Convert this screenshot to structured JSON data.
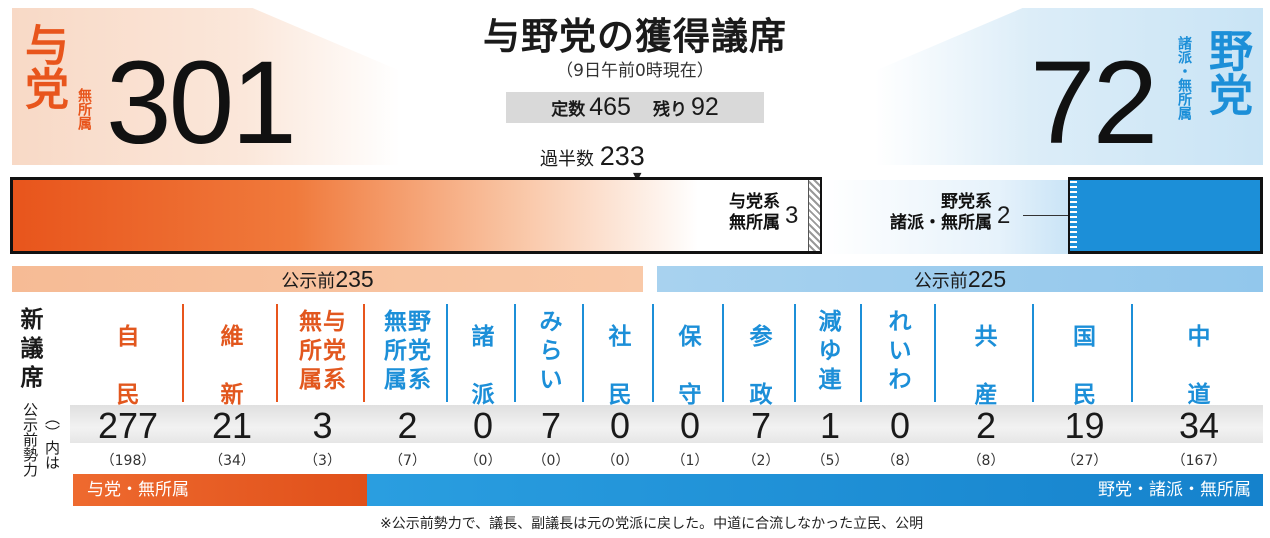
{
  "title": "与野党の獲得議席",
  "subtitle": "（9日午前0時現在）",
  "teisu": {
    "label": "定数",
    "value": "465",
    "remaining_label": "残り",
    "remaining_value": "92"
  },
  "majority": {
    "label": "過半数",
    "value": "233"
  },
  "ruling": {
    "party": "与党",
    "sub": "無所属",
    "total": "301",
    "color": "#e8551c",
    "ind_label_1": "与党系",
    "ind_label_2": "無所属",
    "ind_value": "3",
    "kouji_label": "公示前",
    "kouji_value": "235",
    "group_label": "与党・無所属"
  },
  "opposition": {
    "party": "野党",
    "sub": "諸派・無所属",
    "total": "72",
    "color": "#1c8fd8",
    "ind_label_1": "野党系",
    "ind_label_2": "諸派・無所属",
    "ind_value": "2",
    "kouji_label": "公示前",
    "kouji_value": "225",
    "group_label": "野党・諸派・無所属"
  },
  "row_headers": {
    "new": "新議席",
    "prev": "公示前勢力",
    "paren": "（）内は"
  },
  "parties": [
    {
      "name": "自民",
      "seats": "277",
      "prev": "（198）",
      "color": "#e2571e"
    },
    {
      "name": "維新",
      "seats": "21",
      "prev": "（34）",
      "color": "#e2571e"
    },
    {
      "name": "無与所党属系",
      "seats": "3",
      "prev": "（3）",
      "color": "#e2571e"
    },
    {
      "name": "無野所党属系",
      "seats": "2",
      "prev": "（7）",
      "color": "#1c8fd8"
    },
    {
      "name": "諸派",
      "seats": "0",
      "prev": "（0）",
      "color": "#1c8fd8"
    },
    {
      "name": "みらい",
      "seats": "7",
      "prev": "（0）",
      "color": "#1c8fd8"
    },
    {
      "name": "社民",
      "seats": "0",
      "prev": "（0）",
      "color": "#1c8fd8"
    },
    {
      "name": "保守",
      "seats": "0",
      "prev": "（1）",
      "color": "#1c8fd8"
    },
    {
      "name": "参政",
      "seats": "7",
      "prev": "（2）",
      "color": "#1c8fd8"
    },
    {
      "name": "減ゆ連",
      "seats": "1",
      "prev": "（5）",
      "color": "#1c8fd8"
    },
    {
      "name": "れいわ",
      "seats": "0",
      "prev": "（8）",
      "color": "#1c8fd8"
    },
    {
      "name": "共産",
      "seats": "2",
      "prev": "（8）",
      "color": "#1c8fd8"
    },
    {
      "name": "国民",
      "seats": "19",
      "prev": "（27）",
      "color": "#1c8fd8"
    },
    {
      "name": "中道",
      "seats": "34",
      "prev": "（167）",
      "color": "#1c8fd8"
    }
  ],
  "footnote": "※公示前勢力で、議長、副議長は元の党派に戻した。中道に合流しなかった立民、公明"
}
